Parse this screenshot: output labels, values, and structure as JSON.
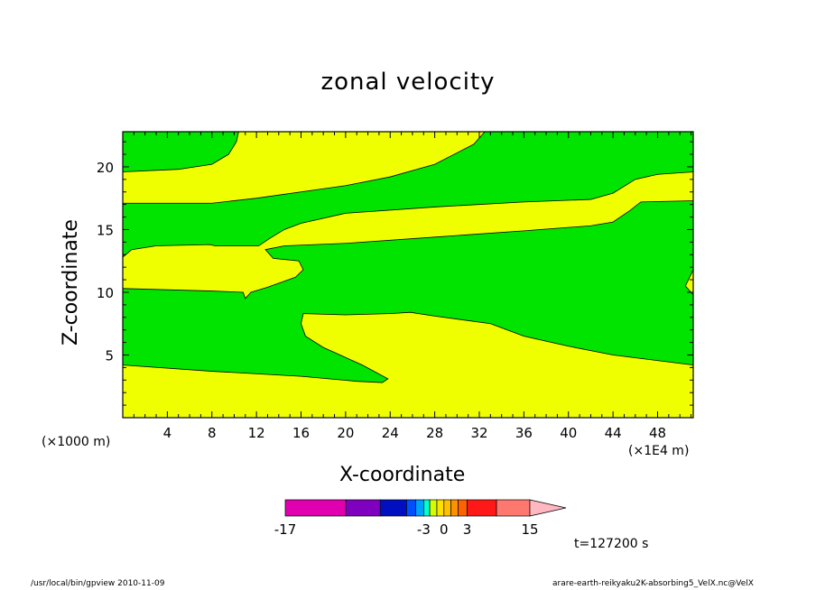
{
  "chart_data": {
    "type": "contour",
    "title": "zonal velocity",
    "xlabel": "X-coordinate",
    "ylabel": "Z-coordinate",
    "x_unit_left": "(×1000 m)",
    "x_unit_right": "(×1E4 m)",
    "x_ticks": [
      4,
      8,
      12,
      16,
      20,
      24,
      28,
      32,
      36,
      40,
      44,
      48
    ],
    "y_ticks": [
      5,
      10,
      15,
      20
    ],
    "xlim": [
      0,
      51.2
    ],
    "ylim": [
      0,
      22.8
    ],
    "colors": {
      "positive": "#f0ff00",
      "negative": "#00e400"
    },
    "contour_boundaries": [
      [
        [
          0,
          4.2
        ],
        [
          8,
          3.7
        ],
        [
          16,
          3.3
        ],
        [
          21,
          2.9
        ],
        [
          23.3,
          2.8
        ],
        [
          23.8,
          3.1
        ],
        [
          21.5,
          4.2
        ],
        [
          18,
          5.6
        ],
        [
          16.4,
          6.5
        ],
        [
          16,
          7.5
        ],
        [
          16.2,
          8.3
        ],
        [
          20,
          8.2
        ],
        [
          24,
          8.3
        ],
        [
          25.8,
          8.4
        ],
        [
          28,
          8.1
        ],
        [
          33,
          7.5
        ],
        [
          36,
          6.5
        ],
        [
          40,
          5.7
        ],
        [
          44,
          5
        ],
        [
          51.2,
          4.2
        ]
      ],
      [
        [
          0,
          10.3
        ],
        [
          8,
          10.1
        ],
        [
          10.8,
          10.0
        ],
        [
          11,
          9.5
        ],
        [
          11.5,
          10.0
        ],
        [
          13,
          10.4
        ],
        [
          15.5,
          11.2
        ],
        [
          16.2,
          11.8
        ],
        [
          15.8,
          12.5
        ],
        [
          13.5,
          12.7
        ],
        [
          12.8,
          13.4
        ],
        [
          14.5,
          13.7
        ],
        [
          20,
          13.9
        ],
        [
          28,
          14.4
        ],
        [
          36,
          14.9
        ],
        [
          42,
          15.3
        ],
        [
          44,
          15.6
        ],
        [
          45.5,
          16.5
        ],
        [
          46.5,
          17.2
        ],
        [
          51.2,
          17.3
        ]
      ],
      [
        [
          0,
          12.8
        ],
        [
          0.8,
          13.4
        ],
        [
          3,
          13.7
        ],
        [
          7.8,
          13.8
        ],
        [
          8.3,
          13.7
        ],
        [
          12.2,
          13.7
        ],
        [
          13.2,
          14.3
        ],
        [
          14.5,
          15.0
        ],
        [
          16,
          15.5
        ],
        [
          20,
          16.3
        ],
        [
          28,
          16.8
        ],
        [
          36,
          17.2
        ],
        [
          42,
          17.4
        ],
        [
          44,
          17.9
        ],
        [
          46,
          19.0
        ],
        [
          48,
          19.4
        ],
        [
          51.2,
          19.6
        ]
      ],
      [
        [
          0,
          17.1
        ],
        [
          8,
          17.1
        ],
        [
          12,
          17.5
        ],
        [
          20,
          18.5
        ],
        [
          24,
          19.2
        ],
        [
          28,
          20.2
        ],
        [
          31.5,
          21.8
        ],
        [
          32.5,
          22.8
        ]
      ],
      [
        [
          0,
          19.6
        ],
        [
          5,
          19.8
        ],
        [
          8,
          20.2
        ],
        [
          9.5,
          21.0
        ],
        [
          10.2,
          22.0
        ],
        [
          10.4,
          22.8
        ]
      ],
      [
        [
          51.2,
          9.8
        ],
        [
          50.5,
          10.5
        ],
        [
          51.2,
          11.8
        ]
      ]
    ],
    "colorbar": {
      "tick_labels": [
        "-17",
        "-3",
        "0",
        "3",
        "15"
      ],
      "colors": [
        "#e000b0",
        "#8000c0",
        "#0010c0",
        "#0050ff",
        "#00a0ff",
        "#00ffd0",
        "#d0ff00",
        "#ffe000",
        "#ffc000",
        "#ff9000",
        "#ff6000",
        "#ff1818",
        "#ff7870",
        "#ffb8c0"
      ],
      "bounds": [
        -17,
        -12,
        -8,
        -5,
        -4,
        -3,
        -2,
        -1,
        0,
        1,
        2,
        3,
        6,
        10,
        15
      ]
    },
    "time_label": "t=127200 s"
  },
  "footer": {
    "left": "/usr/local/bin/gpview   2010-11-09",
    "right": "arare-earth-reikyaku2K-absorbing5_VelX.nc@VelX"
  }
}
